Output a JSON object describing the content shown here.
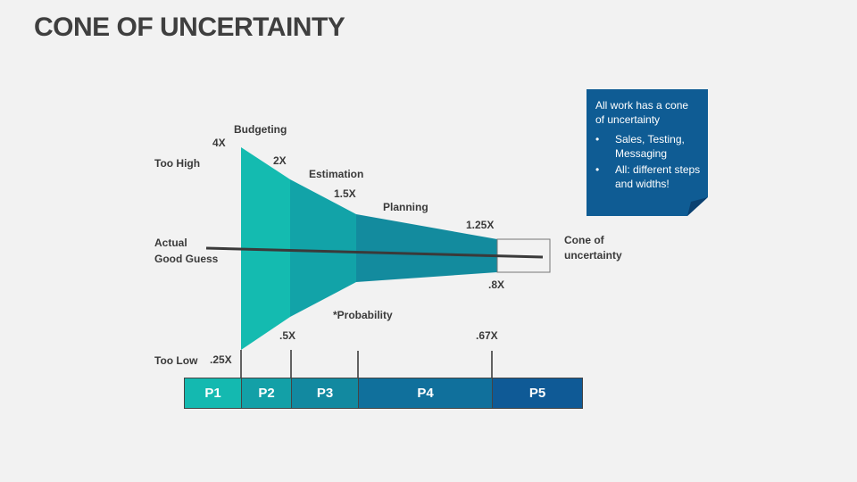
{
  "title": "CONE OF UNCERTAINTY",
  "labels": {
    "too_high": "Too High",
    "actual": "Actual",
    "good_guess": "Good Guess",
    "too_low": "Too Low",
    "cone_line1": "Cone of",
    "cone_line2": "uncertainty",
    "probability": "*Probability"
  },
  "stages": [
    "Budgeting",
    "Estimation",
    "Planning"
  ],
  "upper_values": [
    "4X",
    "2X",
    "1.5X",
    "1.25X"
  ],
  "lower_values": [
    ".25X",
    ".5X",
    ".67X",
    ".8X"
  ],
  "phases": [
    {
      "label": "P1",
      "color": "#14b9b0"
    },
    {
      "label": "P2",
      "color": "#13a0a7"
    },
    {
      "label": "P3",
      "color": "#1289a0"
    },
    {
      "label": "P4",
      "color": "#10709c"
    },
    {
      "label": "P5",
      "color": "#0f5a96"
    }
  ],
  "note": {
    "heading": "All work has a cone of uncertainty",
    "bullets": [
      "Sales, Testing, Messaging",
      "All: different steps and widths!"
    ],
    "color": "#0f5c94"
  }
}
